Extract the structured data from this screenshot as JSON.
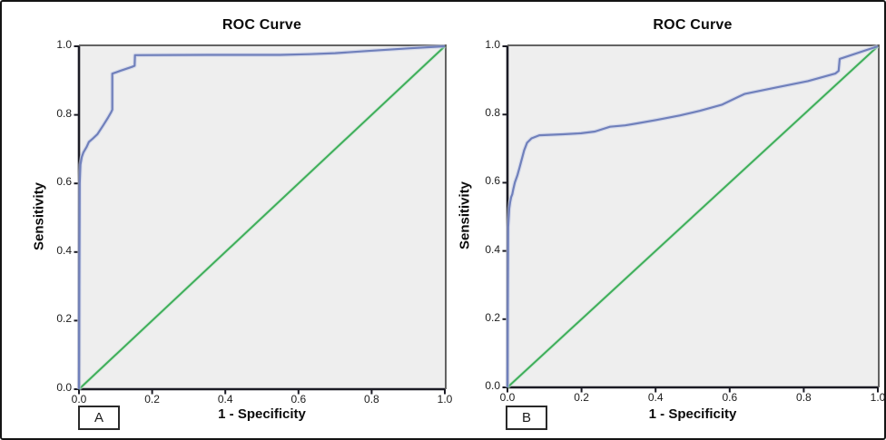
{
  "figure": {
    "background": "#ffffff",
    "border_color": "#141414",
    "panel_count": 2
  },
  "chart_data": [
    {
      "type": "line",
      "panel_label": "A",
      "title": "ROC Curve",
      "xlabel": "1 - Specificity",
      "ylabel": "Sensitivity",
      "xlim": [
        0,
        1
      ],
      "ylim": [
        0,
        1
      ],
      "xticks": [
        "0.0",
        "0.2",
        "0.4",
        "0.6",
        "0.8",
        "1.0"
      ],
      "yticks": [
        "0.0",
        "0.2",
        "0.4",
        "0.6",
        "0.8",
        "1.0"
      ],
      "grid": false,
      "legend": "none",
      "plot_bg": "#eeeeee",
      "axis_color": "#1b1b24",
      "frame_color": "#636363",
      "series": [
        {
          "name": "ROC curve",
          "color": "#7080bb",
          "halo_color": "#c9d1e9",
          "points": [
            [
              0.0,
              0.0
            ],
            [
              0.002,
              0.6
            ],
            [
              0.004,
              0.655
            ],
            [
              0.008,
              0.678
            ],
            [
              0.012,
              0.69
            ],
            [
              0.021,
              0.707
            ],
            [
              0.027,
              0.721
            ],
            [
              0.038,
              0.731
            ],
            [
              0.05,
              0.743
            ],
            [
              0.066,
              0.769
            ],
            [
              0.079,
              0.791
            ],
            [
              0.088,
              0.808
            ],
            [
              0.091,
              0.815
            ],
            [
              0.091,
              0.92
            ],
            [
              0.112,
              0.928
            ],
            [
              0.145,
              0.94
            ],
            [
              0.152,
              0.943
            ],
            [
              0.153,
              0.974
            ],
            [
              0.35,
              0.975
            ],
            [
              0.55,
              0.975
            ],
            [
              0.63,
              0.977
            ],
            [
              0.7,
              0.98
            ],
            [
              0.784,
              0.986
            ],
            [
              0.9,
              0.994
            ],
            [
              1.0,
              1.0
            ]
          ]
        },
        {
          "name": "Reference line",
          "color": "#3fae5a",
          "halo_color": "#c2e5cc",
          "points": [
            [
              0.0,
              0.0
            ],
            [
              1.0,
              1.0
            ]
          ]
        }
      ]
    },
    {
      "type": "line",
      "panel_label": "B",
      "title": "ROC Curve",
      "xlabel": "1 - Specificity",
      "ylabel": "Sensitivity",
      "xlim": [
        0,
        1
      ],
      "ylim": [
        0,
        1
      ],
      "xticks": [
        "0.0",
        "0.2",
        "0.4",
        "0.6",
        "0.8",
        "1.0"
      ],
      "yticks": [
        "0.0",
        "0.2",
        "0.4",
        "0.6",
        "0.8",
        "1.0"
      ],
      "grid": false,
      "legend": "none",
      "plot_bg": "#eeeeee",
      "axis_color": "#1b1b24",
      "frame_color": "#636363",
      "series": [
        {
          "name": "ROC curve",
          "color": "#7080bb",
          "halo_color": "#c9d1e9",
          "points": [
            [
              0.0,
              0.0
            ],
            [
              0.002,
              0.47
            ],
            [
              0.005,
              0.525
            ],
            [
              0.007,
              0.542
            ],
            [
              0.01,
              0.558
            ],
            [
              0.013,
              0.566
            ],
            [
              0.016,
              0.582
            ],
            [
              0.02,
              0.601
            ],
            [
              0.027,
              0.622
            ],
            [
              0.033,
              0.646
            ],
            [
              0.045,
              0.695
            ],
            [
              0.053,
              0.717
            ],
            [
              0.065,
              0.73
            ],
            [
              0.086,
              0.739
            ],
            [
              0.15,
              0.742
            ],
            [
              0.199,
              0.745
            ],
            [
              0.236,
              0.75
            ],
            [
              0.277,
              0.764
            ],
            [
              0.318,
              0.768
            ],
            [
              0.35,
              0.774
            ],
            [
              0.403,
              0.784
            ],
            [
              0.465,
              0.797
            ],
            [
              0.52,
              0.811
            ],
            [
              0.58,
              0.829
            ],
            [
              0.624,
              0.852
            ],
            [
              0.64,
              0.86
            ],
            [
              0.73,
              0.88
            ],
            [
              0.811,
              0.898
            ],
            [
              0.885,
              0.92
            ],
            [
              0.894,
              0.928
            ],
            [
              0.897,
              0.963
            ],
            [
              1.0,
              1.0
            ]
          ]
        },
        {
          "name": "Reference line",
          "color": "#3fae5a",
          "halo_color": "#c2e5cc",
          "points": [
            [
              0.0,
              0.0
            ],
            [
              1.0,
              1.0
            ]
          ]
        }
      ]
    }
  ]
}
